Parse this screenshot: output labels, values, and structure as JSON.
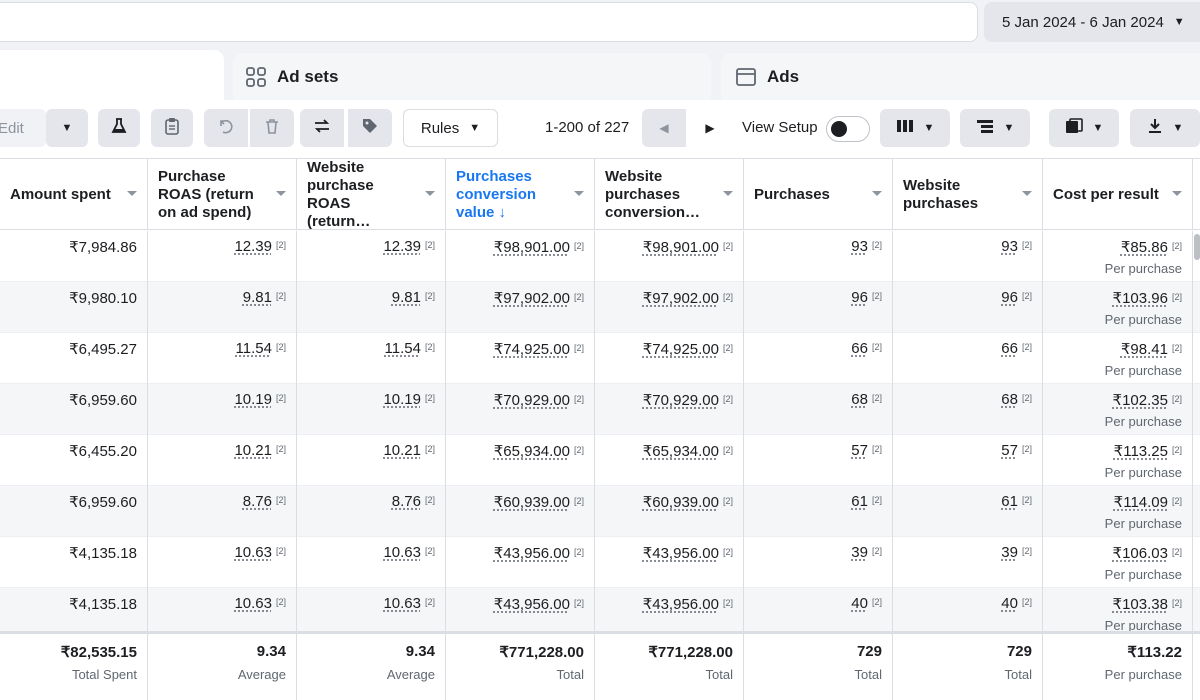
{
  "date_range": {
    "label": "5 Jan 2024 - 6 Jan 2024"
  },
  "tabs": [
    {
      "label": "Ad sets",
      "icon": "grid-icon"
    },
    {
      "label": "Ads",
      "icon": "window-icon"
    }
  ],
  "toolbar": {
    "edit_label": "Edit",
    "rules_label": "Rules",
    "pager_text": "1-200 of 227",
    "view_setup_label": "View Setup",
    "view_setup_on": false
  },
  "columns": [
    {
      "label": "Amount spent"
    },
    {
      "label": "Purchase ROAS (return on ad spend)"
    },
    {
      "label": "Website purchase ROAS (return…"
    },
    {
      "label": "Purchases conversion value ↓",
      "active": true
    },
    {
      "label": "Website purchases conversion…"
    },
    {
      "label": "Purchases"
    },
    {
      "label": "Website purchases"
    },
    {
      "label": "Cost per result"
    }
  ],
  "footnote_marker": "[2]",
  "result_sub_label": "Per purchase",
  "rows": [
    {
      "amount": "₹7,984.86",
      "roas": "12.39",
      "web_roas": "12.39",
      "conv_value": "₹98,901.00",
      "web_conv_value": "₹98,901.00",
      "purchases": "93",
      "web_purchases": "93",
      "cost": "₹85.86"
    },
    {
      "amount": "₹9,980.10",
      "roas": "9.81",
      "web_roas": "9.81",
      "conv_value": "₹97,902.00",
      "web_conv_value": "₹97,902.00",
      "purchases": "96",
      "web_purchases": "96",
      "cost": "₹103.96"
    },
    {
      "amount": "₹6,495.27",
      "roas": "11.54",
      "web_roas": "11.54",
      "conv_value": "₹74,925.00",
      "web_conv_value": "₹74,925.00",
      "purchases": "66",
      "web_purchases": "66",
      "cost": "₹98.41"
    },
    {
      "amount": "₹6,959.60",
      "roas": "10.19",
      "web_roas": "10.19",
      "conv_value": "₹70,929.00",
      "web_conv_value": "₹70,929.00",
      "purchases": "68",
      "web_purchases": "68",
      "cost": "₹102.35"
    },
    {
      "amount": "₹6,455.20",
      "roas": "10.21",
      "web_roas": "10.21",
      "conv_value": "₹65,934.00",
      "web_conv_value": "₹65,934.00",
      "purchases": "57",
      "web_purchases": "57",
      "cost": "₹113.25"
    },
    {
      "amount": "₹6,959.60",
      "roas": "8.76",
      "web_roas": "8.76",
      "conv_value": "₹60,939.00",
      "web_conv_value": "₹60,939.00",
      "purchases": "61",
      "web_purchases": "61",
      "cost": "₹114.09"
    },
    {
      "amount": "₹4,135.18",
      "roas": "10.63",
      "web_roas": "10.63",
      "conv_value": "₹43,956.00",
      "web_conv_value": "₹43,956.00",
      "purchases": "39",
      "web_purchases": "39",
      "cost": "₹106.03"
    },
    {
      "amount": "₹4,135.18",
      "roas": "10.63",
      "web_roas": "10.63",
      "conv_value": "₹43,956.00",
      "web_conv_value": "₹43,956.00",
      "purchases": "40",
      "web_purchases": "40",
      "cost": "₹103.38"
    }
  ],
  "totals": [
    {
      "value": "₹82,535.15",
      "label": "Total Spent"
    },
    {
      "value": "9.34",
      "label": "Average"
    },
    {
      "value": "9.34",
      "label": "Average"
    },
    {
      "value": "₹771,228.00",
      "label": "Total"
    },
    {
      "value": "₹771,228.00",
      "label": "Total"
    },
    {
      "value": "729",
      "label": "Total"
    },
    {
      "value": "729",
      "label": "Total"
    },
    {
      "value": "₹113.22",
      "label": "Per purchase"
    }
  ]
}
